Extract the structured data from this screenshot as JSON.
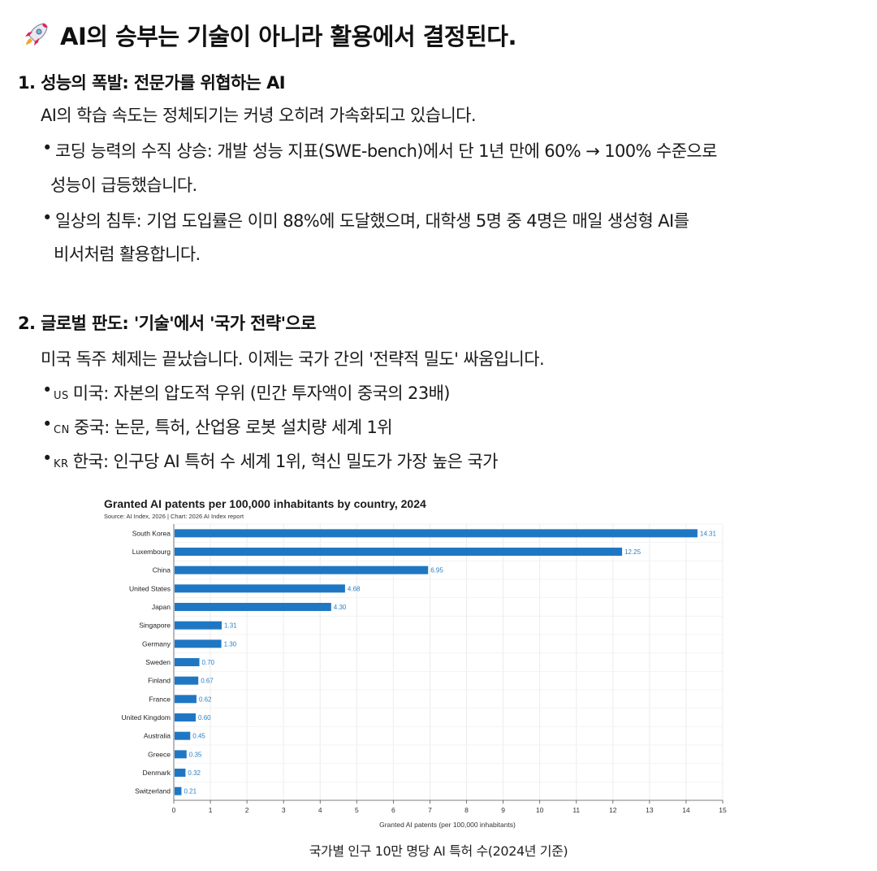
{
  "title": "AI의 승부는 기술이 아니라 활용에서 결정된다.",
  "title_icon": "rocket-icon",
  "section1": {
    "heading": "1. 성능의 폭발: 전문가를 위협하는 AI",
    "intro": "AI의 학습 속도는 정체되기는 커녕 오히려 가속화되고 있습니다.",
    "bullets": [
      {
        "line1": "코딩 능력의 수직 상승: 개발 성능 지표(SWE-bench)에서 단 1년 만에 60% → 100% 수준으로",
        "line2": "성능이 급등했습니다."
      },
      {
        "line1": "일상의 침투: 기업 도입률은 이미 88%에 도달했으며, 대학생 5명 중 4명은 매일 생성형 AI를",
        "line2": "비서처럼 활용합니다."
      }
    ]
  },
  "section2": {
    "heading": "2. 글로벌 판도: '기술'에서 '국가 전략'으로",
    "intro": "미국 독주 체제는 끝났습니다. 이제는 국가 간의 '전략적 밀도' 싸움입니다.",
    "bullets": [
      {
        "flag": "US",
        "text": "미국: 자본의 압도적 우위 (민간 투자액이 중국의 23배)"
      },
      {
        "flag": "CN",
        "text": "중국: 논문, 특허, 산업용 로봇 설치량 세계 1위"
      },
      {
        "flag": "KR",
        "text": "한국: 인구당 AI 특허 수 세계 1위, 혁신 밀도가 가장 높은 국가"
      }
    ]
  },
  "bullet_char": "•",
  "chart_data": {
    "type": "bar",
    "orientation": "horizontal",
    "title": "Granted AI patents per 100,000 inhabitants by country, 2024",
    "subtitle": "Source: AI Index, 2026 | Chart: 2026 AI Index report",
    "xlabel": "Granted AI patents (per 100,000 inhabitants)",
    "ylabel": "",
    "xlim": [
      0,
      15
    ],
    "xticks": [
      "0",
      "1",
      "2",
      "3",
      "4",
      "5",
      "6",
      "7",
      "8",
      "9",
      "10",
      "11",
      "12",
      "13",
      "14",
      "15"
    ],
    "grid": true,
    "bar_color": "#1f77c4",
    "label_color": "#2a7fc4",
    "categories": [
      "South Korea",
      "Luxembourg",
      "China",
      "United States",
      "Japan",
      "Singapore",
      "Germany",
      "Sweden",
      "Finland",
      "France",
      "United Kingdom",
      "Australia",
      "Greece",
      "Denmark",
      "Switzerland"
    ],
    "values": [
      14.31,
      12.25,
      6.95,
      4.68,
      4.3,
      1.31,
      1.3,
      0.7,
      0.67,
      0.62,
      0.6,
      0.45,
      0.35,
      0.32,
      0.21
    ],
    "value_labels": [
      "14.31",
      "12.25",
      "6.95",
      "4.68",
      "4.30",
      "1.31",
      "1.30",
      "0.70",
      "0.67",
      "0.62",
      "0.60",
      "0.45",
      "0.35",
      "0.32",
      "0.21"
    ]
  },
  "caption": "국가별 인구 10만 명당 AI 특허 수(2024년 기준)"
}
